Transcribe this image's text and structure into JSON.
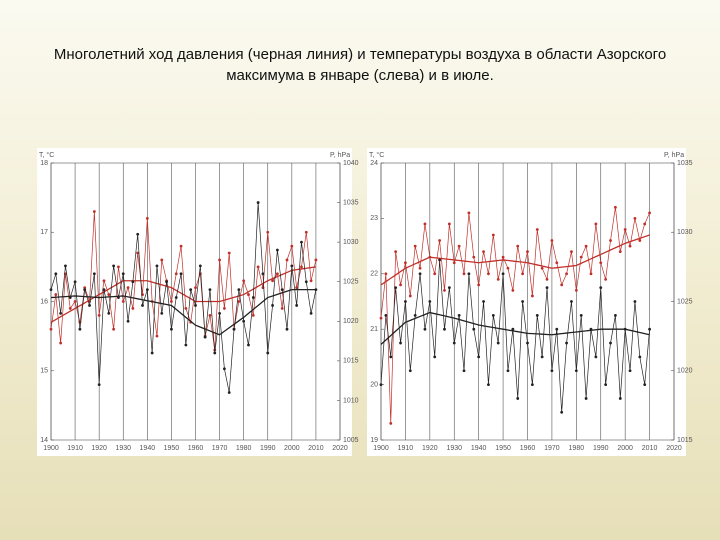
{
  "title": "Многолетний ход давления (черная линия) и температуры воздуха в области Азорского максимума в январе (слева) и в июле.",
  "chart_data": [
    {
      "type": "line",
      "ylabel": "T, °C",
      "y2label": "P, hPa",
      "xlim": [
        1900,
        2020
      ],
      "xticks": [
        1900,
        1910,
        1920,
        1930,
        1940,
        1950,
        1960,
        1970,
        1980,
        1990,
        2000,
        2010,
        2020
      ],
      "ylim": [
        14,
        18
      ],
      "yticks": [
        14,
        15,
        16,
        17,
        18
      ],
      "y2lim": [
        1005,
        1040
      ],
      "y2ticks": [
        1005,
        1010,
        1015,
        1020,
        1025,
        1030,
        1035,
        1040
      ],
      "grid": "x",
      "x": [
        1900,
        1902,
        1904,
        1906,
        1908,
        1910,
        1912,
        1914,
        1916,
        1918,
        1920,
        1922,
        1924,
        1926,
        1928,
        1930,
        1932,
        1934,
        1936,
        1938,
        1940,
        1942,
        1944,
        1946,
        1948,
        1950,
        1952,
        1954,
        1956,
        1958,
        1960,
        1962,
        1964,
        1966,
        1968,
        1970,
        1972,
        1974,
        1976,
        1978,
        1980,
        1982,
        1984,
        1986,
        1988,
        1990,
        1992,
        1994,
        1996,
        1998,
        2000,
        2002,
        2004,
        2006,
        2008,
        2010
      ],
      "series": [
        {
          "color": "#c0302a",
          "markers": true,
          "values": [
            15.6,
            16.1,
            15.4,
            16.4,
            15.9,
            16.0,
            15.7,
            16.2,
            16.0,
            17.3,
            15.8,
            16.3,
            16.1,
            15.6,
            16.5,
            16.0,
            16.2,
            15.9,
            16.7,
            16.1,
            17.2,
            16.0,
            15.5,
            16.6,
            16.3,
            16.0,
            16.4,
            16.8,
            15.9,
            15.7,
            16.2,
            16.4,
            15.5,
            15.8,
            15.3,
            16.6,
            15.9,
            16.7,
            15.6,
            16.0,
            16.3,
            16.1,
            15.8,
            16.5,
            16.2,
            17.0,
            16.3,
            16.4,
            15.9,
            16.6,
            16.8,
            16.2,
            16.5,
            17.0,
            16.3,
            16.6
          ]
        },
        {
          "color": "#c0302a",
          "markers": false,
          "values": [
            15.7,
            15.74,
            15.78,
            15.82,
            15.86,
            15.9,
            15.94,
            15.98,
            16.02,
            16.06,
            16.1,
            16.14,
            16.18,
            16.22,
            16.26,
            16.3,
            16.3,
            16.3,
            16.3,
            16.3,
            16.3,
            16.28,
            16.26,
            16.24,
            16.22,
            16.2,
            16.16,
            16.12,
            16.08,
            16.04,
            16.0,
            16.0,
            16.0,
            16.0,
            16.0,
            16.0,
            16.02,
            16.04,
            16.06,
            16.08,
            16.1,
            16.14,
            16.18,
            16.22,
            16.26,
            16.3,
            16.33,
            16.36,
            16.39,
            16.42,
            16.45,
            16.46,
            16.47,
            16.48,
            16.49,
            16.5
          ]
        },
        {
          "color": "#222222",
          "markers": true,
          "axis": "y2",
          "values": [
            1024,
            1026,
            1021,
            1027,
            1023,
            1025,
            1019,
            1024,
            1022,
            1026,
            1012,
            1024,
            1021,
            1027,
            1023,
            1026,
            1020,
            1025,
            1031,
            1022,
            1024,
            1016,
            1027,
            1021,
            1025,
            1019,
            1023,
            1026,
            1017,
            1024,
            1022,
            1027,
            1018,
            1024,
            1016,
            1021,
            1014,
            1011,
            1019,
            1024,
            1020,
            1017,
            1023,
            1035,
            1026,
            1016,
            1022,
            1029,
            1024,
            1019,
            1027,
            1022,
            1030,
            1025,
            1021,
            1024
          ]
        },
        {
          "color": "#222222",
          "markers": false,
          "axis": "y2",
          "values": [
            1023.0,
            1023.04,
            1023.08,
            1023.12,
            1023.16,
            1023.2,
            1023.16,
            1023.12,
            1023.08,
            1023.04,
            1023.0,
            1023.04,
            1023.08,
            1023.12,
            1023.16,
            1023.2,
            1023.08,
            1022.96,
            1022.84,
            1022.72,
            1022.6,
            1022.48,
            1022.36,
            1022.24,
            1022.12,
            1022.0,
            1021.5,
            1021.0,
            1020.5,
            1020.0,
            1019.5,
            1019.26,
            1019.02,
            1018.78,
            1018.54,
            1018.3,
            1018.74,
            1019.18,
            1019.62,
            1020.06,
            1020.5,
            1021.0,
            1021.5,
            1022.0,
            1022.5,
            1023.0,
            1023.2,
            1023.4,
            1023.6,
            1023.8,
            1024.0,
            1024.0,
            1024.0,
            1024.0,
            1024.0,
            1024.0
          ]
        }
      ]
    },
    {
      "type": "line",
      "ylabel": "T, °C",
      "y2label": "P, hPa",
      "xlim": [
        1900,
        2020
      ],
      "xticks": [
        1900,
        1910,
        1920,
        1930,
        1940,
        1950,
        1960,
        1970,
        1980,
        1990,
        2000,
        2010,
        2020
      ],
      "ylim": [
        19,
        24
      ],
      "yticks": [
        19,
        20,
        21,
        22,
        23,
        24
      ],
      "y2lim": [
        1015,
        1035
      ],
      "y2ticks": [
        1015,
        1020,
        1025,
        1030,
        1035
      ],
      "grid": "x",
      "x": [
        1900,
        1902,
        1904,
        1906,
        1908,
        1910,
        1912,
        1914,
        1916,
        1918,
        1920,
        1922,
        1924,
        1926,
        1928,
        1930,
        1932,
        1934,
        1936,
        1938,
        1940,
        1942,
        1944,
        1946,
        1948,
        1950,
        1952,
        1954,
        1956,
        1958,
        1960,
        1962,
        1964,
        1966,
        1968,
        1970,
        1972,
        1974,
        1976,
        1978,
        1980,
        1982,
        1984,
        1986,
        1988,
        1990,
        1992,
        1994,
        1996,
        1998,
        2000,
        2002,
        2004,
        2006,
        2008,
        2010
      ],
      "series": [
        {
          "color": "#c0302a",
          "markers": true,
          "values": [
            21.2,
            22.0,
            19.3,
            22.4,
            21.8,
            22.2,
            21.6,
            22.5,
            22.1,
            22.9,
            22.3,
            22.0,
            22.6,
            21.7,
            22.9,
            22.2,
            22.5,
            22.0,
            23.1,
            22.3,
            21.8,
            22.4,
            22.0,
            22.7,
            21.9,
            22.3,
            22.1,
            21.7,
            22.5,
            22.0,
            22.4,
            21.6,
            22.8,
            22.1,
            21.9,
            22.6,
            22.2,
            21.8,
            22.0,
            22.4,
            21.7,
            22.3,
            22.5,
            22.0,
            22.9,
            22.2,
            21.9,
            22.6,
            23.2,
            22.4,
            22.8,
            22.5,
            23.0,
            22.6,
            22.9,
            23.1
          ]
        },
        {
          "color": "#c0302a",
          "markers": false,
          "values": [
            21.8,
            21.86,
            21.92,
            21.98,
            22.04,
            22.1,
            22.14,
            22.18,
            22.22,
            22.26,
            22.3,
            22.29,
            22.28,
            22.27,
            22.26,
            22.25,
            22.24,
            22.23,
            22.22,
            22.21,
            22.2,
            22.21,
            22.22,
            22.23,
            22.24,
            22.25,
            22.24,
            22.23,
            22.22,
            22.21,
            22.2,
            22.18,
            22.16,
            22.14,
            22.12,
            22.1,
            22.11,
            22.12,
            22.13,
            22.14,
            22.15,
            22.19,
            22.23,
            22.27,
            22.31,
            22.35,
            22.39,
            22.43,
            22.47,
            22.51,
            22.55,
            22.58,
            22.61,
            22.64,
            22.67,
            22.7
          ]
        },
        {
          "color": "#222222",
          "markers": true,
          "axis": "y2",
          "values": [
            1019,
            1024,
            1021,
            1026,
            1022,
            1025,
            1020,
            1024,
            1027,
            1023,
            1025,
            1021,
            1028,
            1023,
            1026,
            1022,
            1024,
            1020,
            1027,
            1023,
            1021,
            1025,
            1019,
            1024,
            1022,
            1027,
            1020,
            1023,
            1018,
            1025,
            1022,
            1019,
            1024,
            1021,
            1026,
            1020,
            1023,
            1017,
            1022,
            1025,
            1020,
            1024,
            1018,
            1023,
            1021,
            1026,
            1019,
            1022,
            1024,
            1018,
            1023,
            1020,
            1025,
            1021,
            1019,
            1023
          ]
        },
        {
          "color": "#222222",
          "markers": false,
          "axis": "y2",
          "values": [
            1021.9,
            1022.22,
            1022.54,
            1022.86,
            1023.18,
            1023.5,
            1023.64,
            1023.78,
            1023.92,
            1024.06,
            1024.2,
            1024.12,
            1024.04,
            1023.96,
            1023.88,
            1023.8,
            1023.7,
            1023.6,
            1023.5,
            1023.4,
            1023.3,
            1023.24,
            1023.18,
            1023.12,
            1023.06,
            1023.0,
            1022.94,
            1022.88,
            1022.82,
            1022.76,
            1022.7,
            1022.68,
            1022.66,
            1022.64,
            1022.62,
            1022.6,
            1022.64,
            1022.68,
            1022.72,
            1022.76,
            1022.8,
            1022.84,
            1022.88,
            1022.92,
            1022.96,
            1023.0,
            1023.0,
            1023.0,
            1023.0,
            1023.0,
            1023.0,
            1022.92,
            1022.84,
            1022.76,
            1022.68,
            1022.6
          ]
        }
      ]
    }
  ]
}
